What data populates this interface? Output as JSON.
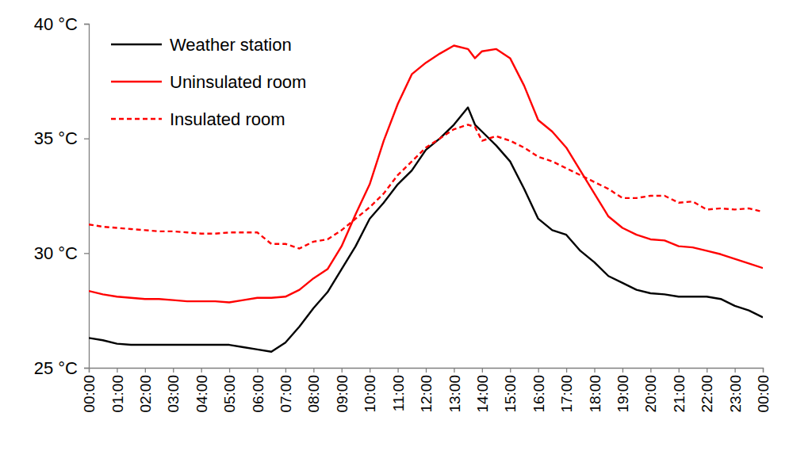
{
  "chart_data": {
    "type": "line",
    "x": [
      0,
      0.5,
      1,
      1.5,
      2,
      2.5,
      3,
      3.5,
      4,
      4.5,
      5,
      5.5,
      6,
      6.5,
      7,
      7.5,
      8,
      8.5,
      9,
      9.5,
      10,
      10.5,
      11,
      11.5,
      12,
      12.5,
      13,
      13.5,
      13.75,
      14,
      14.5,
      15,
      15.5,
      16,
      16.5,
      17,
      17.5,
      18,
      18.5,
      19,
      19.5,
      20,
      20.5,
      21,
      21.5,
      22,
      22.5,
      23,
      23.5,
      24
    ],
    "series": [
      {
        "name": "Weather station",
        "color": "#000000",
        "line_style": "solid",
        "values": [
          26.3,
          26.2,
          26.05,
          26.0,
          26.0,
          26.0,
          26.0,
          26.0,
          26.0,
          26.0,
          26.0,
          25.9,
          25.8,
          25.7,
          26.1,
          26.8,
          27.6,
          28.3,
          29.3,
          30.3,
          31.5,
          32.2,
          33.0,
          33.6,
          34.5,
          35.0,
          35.6,
          36.35,
          35.6,
          35.3,
          34.7,
          34.0,
          32.8,
          31.5,
          31.0,
          30.8,
          30.1,
          29.6,
          29.0,
          28.7,
          28.4,
          28.25,
          28.2,
          28.1,
          28.1,
          28.1,
          28.0,
          27.7,
          27.5,
          27.2
        ]
      },
      {
        "name": "Uninsulated room",
        "color": "#ff0000",
        "line_style": "solid",
        "values": [
          28.35,
          28.2,
          28.1,
          28.05,
          28.0,
          28.0,
          27.95,
          27.9,
          27.9,
          27.9,
          27.85,
          27.95,
          28.05,
          28.05,
          28.1,
          28.4,
          28.9,
          29.3,
          30.3,
          31.7,
          33.0,
          34.9,
          36.5,
          37.8,
          38.3,
          38.7,
          39.05,
          38.9,
          38.5,
          38.8,
          38.9,
          38.5,
          37.3,
          35.8,
          35.3,
          34.6,
          33.6,
          32.6,
          31.6,
          31.1,
          30.8,
          30.6,
          30.55,
          30.3,
          30.25,
          30.1,
          29.95,
          29.75,
          29.55,
          29.35
        ]
      },
      {
        "name": "Insulated room",
        "color": "#ff0000",
        "line_style": "dashed",
        "values": [
          31.25,
          31.15,
          31.1,
          31.05,
          31.0,
          30.95,
          30.95,
          30.9,
          30.85,
          30.85,
          30.9,
          30.9,
          30.9,
          30.4,
          30.4,
          30.2,
          30.5,
          30.6,
          31.0,
          31.5,
          32.0,
          32.6,
          33.4,
          34.0,
          34.6,
          35.0,
          35.4,
          35.6,
          35.5,
          34.9,
          35.1,
          34.9,
          34.6,
          34.2,
          34.0,
          33.7,
          33.4,
          33.1,
          32.8,
          32.4,
          32.4,
          32.5,
          32.5,
          32.2,
          32.25,
          31.9,
          31.95,
          31.9,
          31.95,
          31.8
        ]
      }
    ],
    "xlim": [
      0,
      24
    ],
    "xticks": [
      {
        "value": 0,
        "label": "00:00"
      },
      {
        "value": 1,
        "label": "01:00"
      },
      {
        "value": 2,
        "label": "02:00"
      },
      {
        "value": 3,
        "label": "03:00"
      },
      {
        "value": 4,
        "label": "04:00"
      },
      {
        "value": 5,
        "label": "05:00"
      },
      {
        "value": 6,
        "label": "06:00"
      },
      {
        "value": 7,
        "label": "07:00"
      },
      {
        "value": 8,
        "label": "08:00"
      },
      {
        "value": 9,
        "label": "09:00"
      },
      {
        "value": 10,
        "label": "10:00"
      },
      {
        "value": 11,
        "label": "11:00"
      },
      {
        "value": 12,
        "label": "12:00"
      },
      {
        "value": 13,
        "label": "13:00"
      },
      {
        "value": 14,
        "label": "14:00"
      },
      {
        "value": 15,
        "label": "15:00"
      },
      {
        "value": 16,
        "label": "16:00"
      },
      {
        "value": 17,
        "label": "17:00"
      },
      {
        "value": 18,
        "label": "18:00"
      },
      {
        "value": 19,
        "label": "19:00"
      },
      {
        "value": 20,
        "label": "20:00"
      },
      {
        "value": 21,
        "label": "21:00"
      },
      {
        "value": 22,
        "label": "22:00"
      },
      {
        "value": 23,
        "label": "23:00"
      },
      {
        "value": 24,
        "label": "00:00"
      }
    ],
    "ylim": [
      25,
      40
    ],
    "yticks": [
      {
        "value": 25,
        "label": "25 °C"
      },
      {
        "value": 30,
        "label": "30 °C"
      },
      {
        "value": 35,
        "label": "35 °C"
      },
      {
        "value": 40,
        "label": "40 °C"
      }
    ],
    "grid": false,
    "legend": "top-left"
  }
}
